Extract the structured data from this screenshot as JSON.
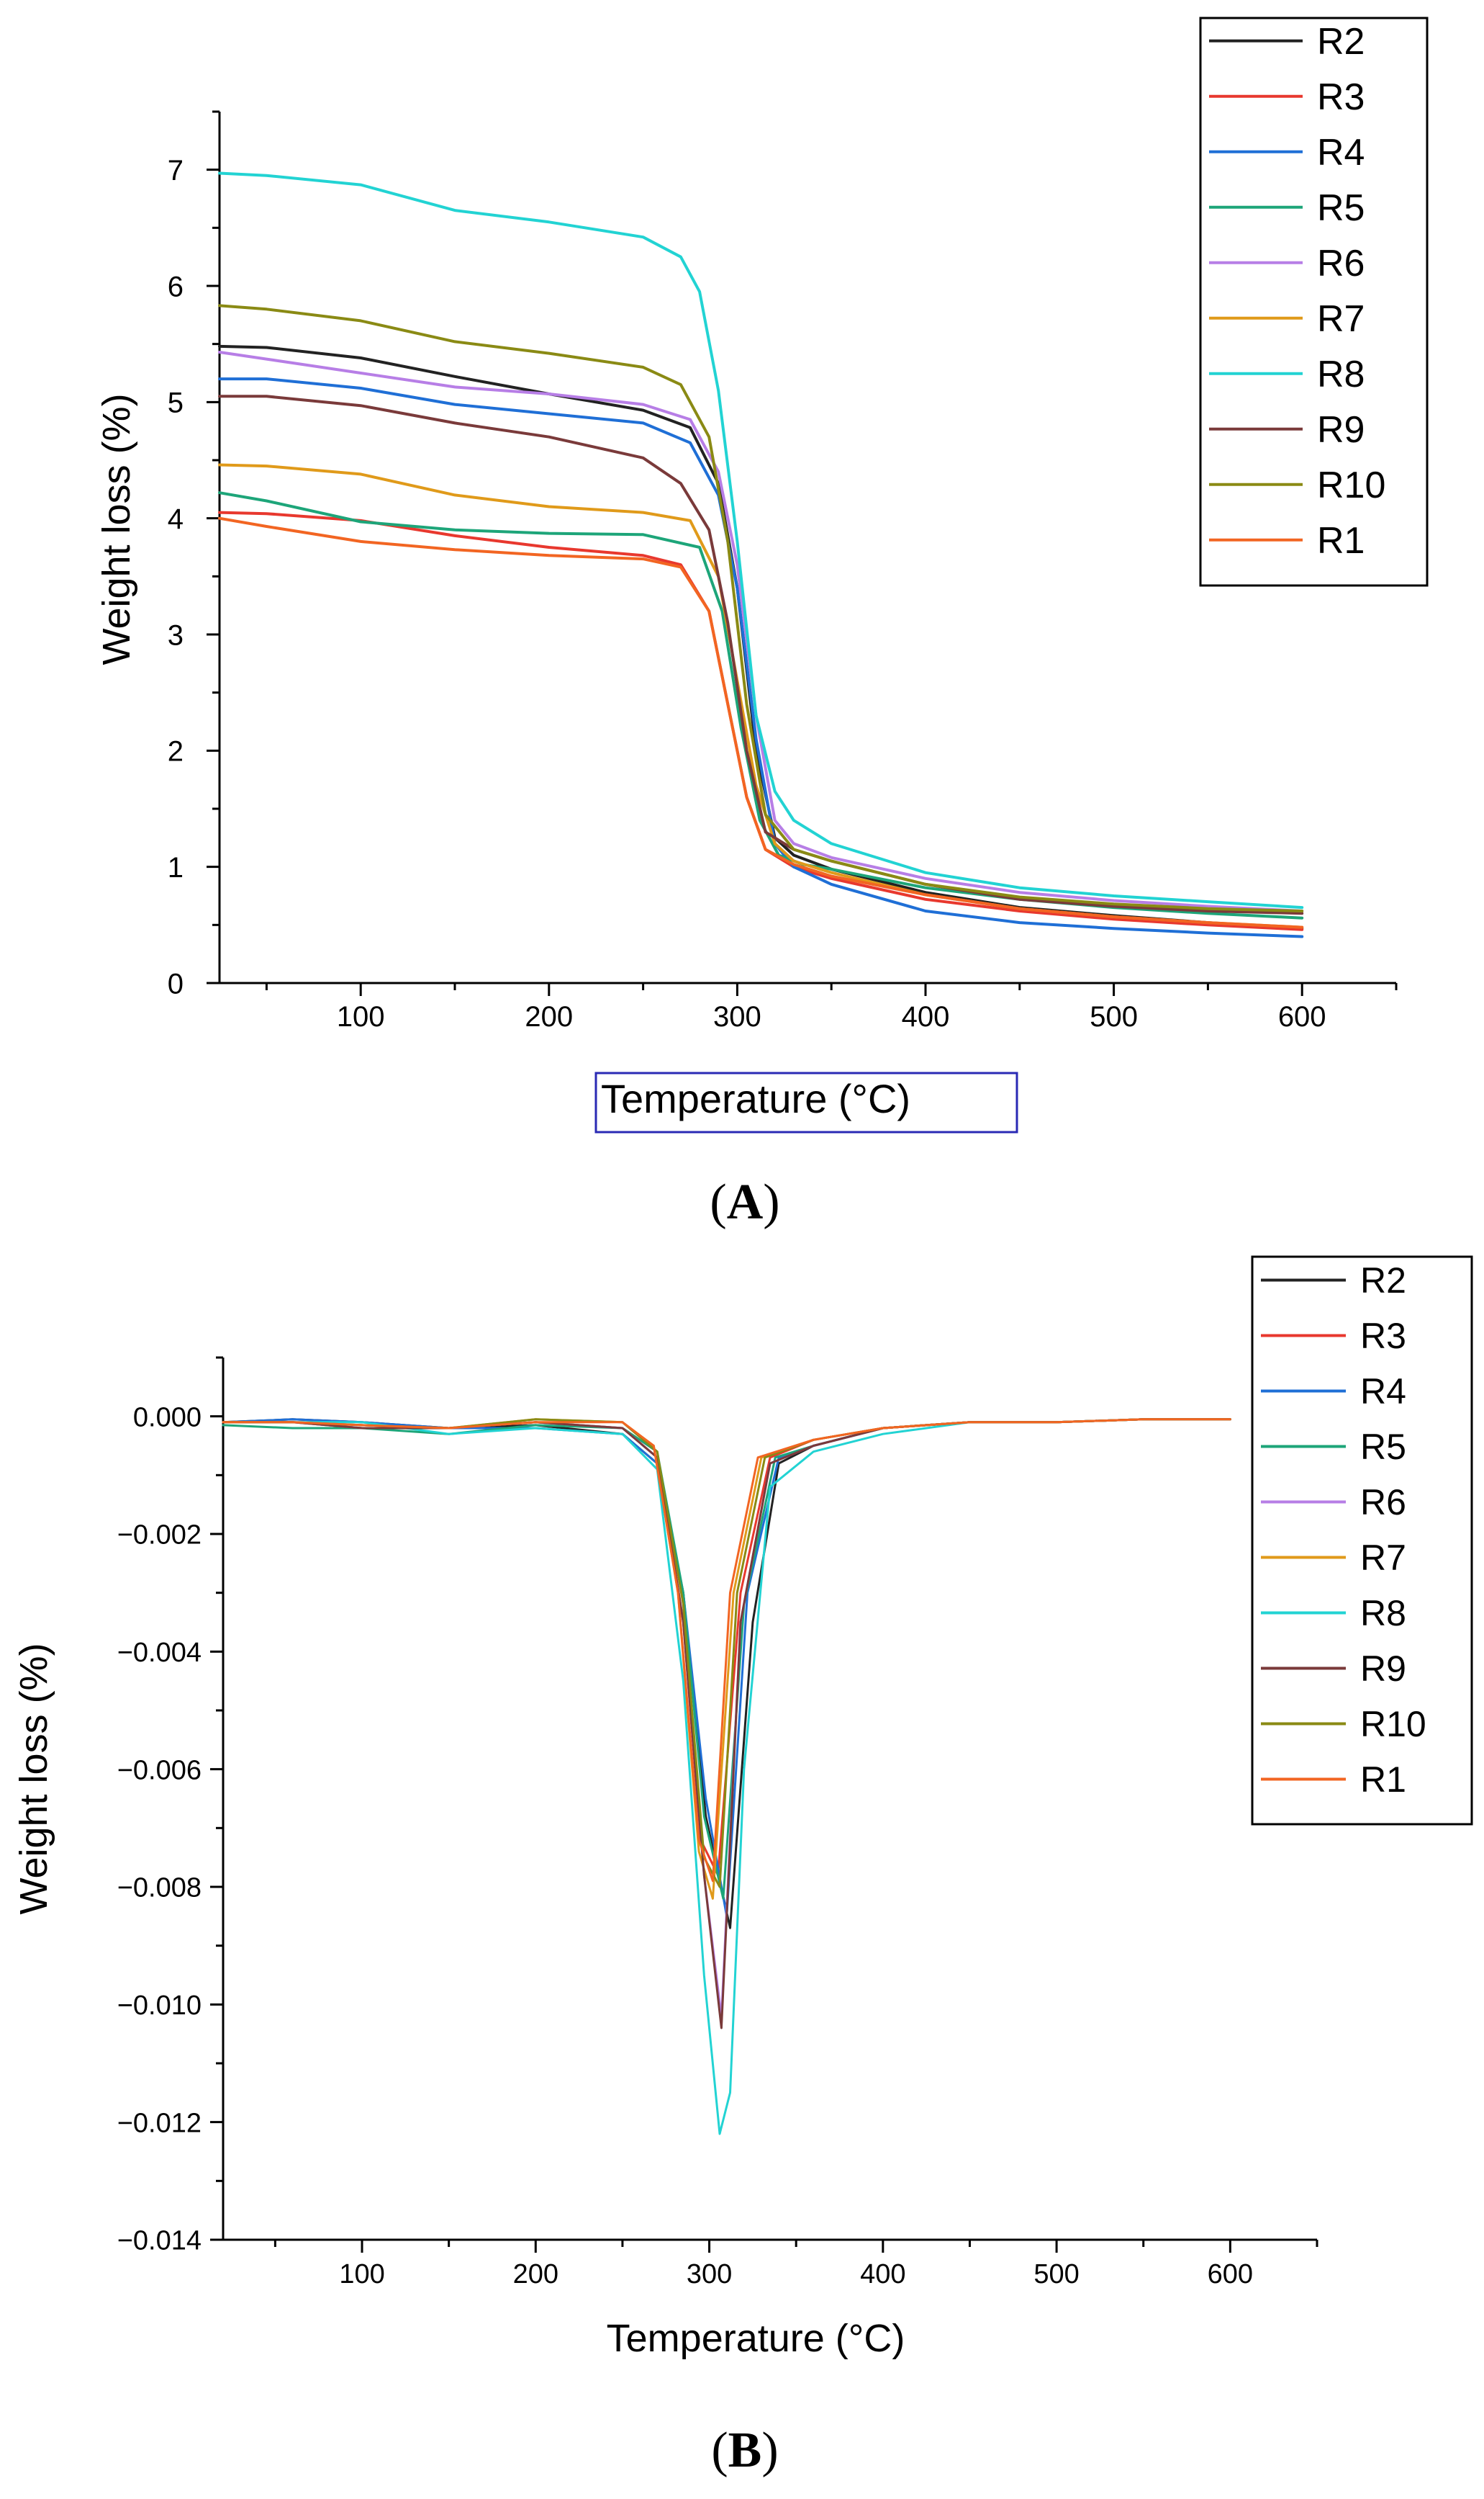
{
  "chart_data": [
    {
      "type": "line",
      "panel": "A",
      "panel_label": "A",
      "xlabel": "Temperature (°C)",
      "ylabel": "Weight loss (%)",
      "xlim": [
        25,
        650
      ],
      "ylim": [
        0,
        7.5
      ],
      "xticks": [
        100,
        200,
        300,
        400,
        500,
        600
      ],
      "yticks": [
        0,
        1,
        2,
        3,
        4,
        5,
        6,
        7
      ],
      "legend": "top-right",
      "grid": false,
      "series": [
        {
          "name": "R2",
          "color": "#222222",
          "x": [
            25,
            50,
            100,
            150,
            200,
            250,
            275,
            290,
            300,
            310,
            320,
            330,
            350,
            400,
            450,
            500,
            550,
            600
          ],
          "y": [
            5.48,
            5.47,
            5.38,
            5.22,
            5.07,
            4.93,
            4.78,
            4.3,
            3.4,
            2.0,
            1.25,
            1.1,
            0.98,
            0.78,
            0.65,
            0.58,
            0.52,
            0.47
          ]
        },
        {
          "name": "R3",
          "color": "#e8382e",
          "x": [
            25,
            50,
            100,
            150,
            200,
            250,
            270,
            285,
            295,
            305,
            315,
            330,
            350,
            400,
            450,
            500,
            550,
            600
          ],
          "y": [
            4.05,
            4.04,
            3.98,
            3.85,
            3.75,
            3.68,
            3.6,
            3.2,
            2.4,
            1.6,
            1.15,
            1.0,
            0.9,
            0.72,
            0.62,
            0.55,
            0.5,
            0.46
          ]
        },
        {
          "name": "R4",
          "color": "#1f6fd6",
          "x": [
            25,
            50,
            100,
            150,
            200,
            250,
            275,
            290,
            300,
            310,
            320,
            330,
            350,
            400,
            450,
            500,
            550,
            600
          ],
          "y": [
            5.2,
            5.2,
            5.12,
            4.98,
            4.9,
            4.82,
            4.65,
            4.2,
            3.4,
            2.1,
            1.2,
            1.0,
            0.85,
            0.62,
            0.52,
            0.47,
            0.43,
            0.4
          ]
        },
        {
          "name": "R5",
          "color": "#1da579",
          "x": [
            25,
            50,
            100,
            150,
            200,
            250,
            280,
            292,
            302,
            312,
            322,
            335,
            350,
            400,
            450,
            500,
            550,
            600
          ],
          "y": [
            4.22,
            4.15,
            3.97,
            3.9,
            3.87,
            3.86,
            3.75,
            3.2,
            2.2,
            1.4,
            1.1,
            1.02,
            0.98,
            0.82,
            0.72,
            0.65,
            0.6,
            0.56
          ]
        },
        {
          "name": "R6",
          "color": "#b77ee6",
          "x": [
            25,
            50,
            100,
            150,
            200,
            250,
            275,
            290,
            300,
            310,
            320,
            330,
            350,
            400,
            450,
            500,
            550,
            600
          ],
          "y": [
            5.43,
            5.37,
            5.25,
            5.13,
            5.07,
            4.98,
            4.85,
            4.4,
            3.6,
            2.3,
            1.4,
            1.2,
            1.08,
            0.9,
            0.78,
            0.71,
            0.66,
            0.62
          ]
        },
        {
          "name": "R7",
          "color": "#e09a1a",
          "x": [
            25,
            50,
            100,
            150,
            200,
            250,
            275,
            290,
            300,
            310,
            320,
            330,
            350,
            400,
            450,
            500,
            550,
            600
          ],
          "y": [
            4.46,
            4.45,
            4.38,
            4.2,
            4.1,
            4.05,
            3.98,
            3.5,
            2.6,
            1.7,
            1.2,
            1.05,
            0.95,
            0.76,
            0.64,
            0.57,
            0.52,
            0.48
          ]
        },
        {
          "name": "R8",
          "color": "#22d3d3",
          "x": [
            25,
            50,
            100,
            150,
            200,
            250,
            270,
            280,
            290,
            300,
            310,
            320,
            330,
            350,
            400,
            450,
            500,
            550,
            600
          ],
          "y": [
            6.97,
            6.95,
            6.87,
            6.65,
            6.55,
            6.42,
            6.25,
            5.95,
            5.1,
            3.8,
            2.3,
            1.65,
            1.4,
            1.2,
            0.95,
            0.82,
            0.75,
            0.7,
            0.65
          ]
        },
        {
          "name": "R9",
          "color": "#7a3a3a",
          "x": [
            25,
            50,
            100,
            150,
            200,
            250,
            270,
            285,
            295,
            305,
            315,
            330,
            350,
            400,
            450,
            500,
            550,
            600
          ],
          "y": [
            5.05,
            5.05,
            4.97,
            4.82,
            4.7,
            4.52,
            4.3,
            3.9,
            3.1,
            2.0,
            1.3,
            1.15,
            1.05,
            0.85,
            0.72,
            0.66,
            0.62,
            0.6
          ]
        },
        {
          "name": "R10",
          "color": "#8a8a14",
          "x": [
            25,
            50,
            100,
            150,
            200,
            250,
            270,
            285,
            295,
            305,
            315,
            330,
            350,
            400,
            450,
            500,
            550,
            600
          ],
          "y": [
            5.83,
            5.8,
            5.7,
            5.52,
            5.42,
            5.3,
            5.15,
            4.7,
            3.8,
            2.4,
            1.45,
            1.15,
            1.05,
            0.85,
            0.74,
            0.68,
            0.64,
            0.62
          ]
        },
        {
          "name": "R1",
          "color": "#f26522",
          "x": [
            25,
            50,
            100,
            150,
            200,
            250,
            270,
            285,
            295,
            305,
            315,
            330,
            350,
            400,
            450,
            500,
            550,
            600
          ],
          "y": [
            4.0,
            3.93,
            3.8,
            3.73,
            3.68,
            3.65,
            3.58,
            3.2,
            2.4,
            1.6,
            1.15,
            1.02,
            0.92,
            0.76,
            0.64,
            0.57,
            0.52,
            0.48
          ]
        }
      ]
    },
    {
      "type": "line",
      "panel": "B",
      "panel_label": "B",
      "xlabel": "Temperature (°C)",
      "ylabel": "Weight loss (%)",
      "xlim": [
        20,
        650
      ],
      "ylim": [
        -0.014,
        0.001
      ],
      "xticks": [
        100,
        200,
        300,
        400,
        500,
        600
      ],
      "yticks": [
        0.0,
        -0.002,
        -0.004,
        -0.006,
        -0.008,
        -0.01,
        -0.012,
        -0.014
      ],
      "yticklabels": [
        "0.000",
        "−0.002",
        "−0.004",
        "−0.006",
        "−0.008",
        "−0.010",
        "−0.012",
        "−0.014"
      ],
      "legend": "top-right",
      "grid": false,
      "series": [
        {
          "name": "R2",
          "color": "#222222",
          "x": [
            20,
            60,
            100,
            150,
            200,
            250,
            270,
            285,
            298,
            312,
            325,
            340,
            360,
            400,
            450,
            500,
            550,
            600
          ],
          "y": [
            -0.0001,
            -5e-05,
            -0.0001,
            -0.0002,
            -0.00015,
            -0.0003,
            -0.0008,
            -0.003,
            -0.0068,
            -0.0087,
            -0.0035,
            -0.0008,
            -0.0005,
            -0.0002,
            -0.0001,
            -0.0001,
            -5e-05,
            -5e-05
          ]
        },
        {
          "name": "R3",
          "color": "#e8382e",
          "x": [
            20,
            60,
            100,
            150,
            200,
            250,
            270,
            285,
            295,
            305,
            318,
            335,
            360,
            400,
            450,
            500,
            550,
            600
          ],
          "y": [
            -0.0001,
            -0.0001,
            -0.0002,
            -0.0002,
            -0.0001,
            -0.0002,
            -0.0006,
            -0.0035,
            -0.0072,
            -0.0078,
            -0.003,
            -0.0007,
            -0.0004,
            -0.0002,
            -0.0001,
            -0.0001,
            -5e-05,
            -5e-05
          ]
        },
        {
          "name": "R4",
          "color": "#1f6fd6",
          "x": [
            20,
            60,
            100,
            150,
            200,
            250,
            270,
            285,
            298,
            310,
            322,
            340,
            360,
            400,
            450,
            500,
            550,
            600
          ],
          "y": [
            -0.0001,
            -5e-05,
            -0.0001,
            -0.0002,
            -0.0002,
            -0.0003,
            -0.0008,
            -0.003,
            -0.0065,
            -0.0085,
            -0.003,
            -0.0007,
            -0.0005,
            -0.0002,
            -0.0001,
            -0.0001,
            -5e-05,
            -5e-05
          ]
        },
        {
          "name": "R5",
          "color": "#1da579",
          "x": [
            20,
            60,
            100,
            150,
            200,
            250,
            270,
            285,
            297,
            308,
            320,
            338,
            360,
            400,
            450,
            500,
            550,
            600
          ],
          "y": [
            -0.00015,
            -0.0002,
            -0.0002,
            -0.0003,
            -0.00015,
            -0.0002,
            -0.0006,
            -0.003,
            -0.0068,
            -0.0082,
            -0.0032,
            -0.0007,
            -0.0005,
            -0.0002,
            -0.0001,
            -0.0001,
            -5e-05,
            -5e-05
          ]
        },
        {
          "name": "R6",
          "color": "#b77ee6",
          "x": [
            20,
            60,
            100,
            150,
            200,
            250,
            270,
            285,
            297,
            307,
            318,
            335,
            360,
            400,
            450,
            500,
            550,
            600
          ],
          "y": [
            -0.0001,
            -0.0001,
            -0.0002,
            -0.0002,
            -0.0001,
            -0.0002,
            -0.0007,
            -0.0035,
            -0.0078,
            -0.0102,
            -0.0035,
            -0.0008,
            -0.0005,
            -0.0002,
            -0.0001,
            -0.0001,
            -5e-05,
            -5e-05
          ]
        },
        {
          "name": "R7",
          "color": "#e09a1a",
          "x": [
            20,
            60,
            100,
            150,
            200,
            250,
            268,
            282,
            294,
            302,
            314,
            330,
            360,
            400,
            450,
            500,
            550,
            600
          ],
          "y": [
            -0.0001,
            -0.0001,
            -0.00015,
            -0.0002,
            -5e-05,
            -0.0001,
            -0.0005,
            -0.003,
            -0.0074,
            -0.0082,
            -0.003,
            -0.0007,
            -0.0004,
            -0.0002,
            -0.0001,
            -0.0001,
            -5e-05,
            -5e-05
          ]
        },
        {
          "name": "R8",
          "color": "#22d3d3",
          "x": [
            20,
            60,
            100,
            150,
            200,
            250,
            270,
            285,
            297,
            306,
            312,
            320,
            335,
            360,
            400,
            450,
            500,
            550,
            600
          ],
          "y": [
            -0.0001,
            -0.0001,
            -0.0001,
            -0.0003,
            -0.0002,
            -0.0003,
            -0.0009,
            -0.0045,
            -0.0095,
            -0.0122,
            -0.0115,
            -0.006,
            -0.0012,
            -0.0006,
            -0.0003,
            -0.0001,
            -0.0001,
            -5e-05,
            -5e-05
          ]
        },
        {
          "name": "R9",
          "color": "#7a3a3a",
          "x": [
            20,
            60,
            100,
            150,
            200,
            250,
            270,
            285,
            297,
            307,
            318,
            335,
            360,
            400,
            450,
            500,
            550,
            600
          ],
          "y": [
            -0.0001,
            -0.0001,
            -0.0002,
            -0.0002,
            -0.0001,
            -0.0002,
            -0.0007,
            -0.0035,
            -0.0078,
            -0.0104,
            -0.0035,
            -0.0008,
            -0.0005,
            -0.0002,
            -0.0001,
            -0.0001,
            -5e-05,
            -5e-05
          ]
        },
        {
          "name": "R10",
          "color": "#8a8a14",
          "x": [
            20,
            60,
            100,
            150,
            200,
            250,
            270,
            285,
            297,
            306,
            316,
            332,
            360,
            400,
            450,
            500,
            550,
            600
          ],
          "y": [
            -0.0001,
            -0.0001,
            -0.00015,
            -0.0002,
            -5e-05,
            -0.0001,
            -0.0006,
            -0.0032,
            -0.0075,
            -0.008,
            -0.003,
            -0.0007,
            -0.0004,
            -0.0002,
            -0.0001,
            -0.0001,
            -5e-05,
            -5e-05
          ]
        },
        {
          "name": "R1",
          "color": "#f26522",
          "x": [
            20,
            60,
            100,
            150,
            200,
            250,
            268,
            282,
            294,
            302,
            312,
            328,
            360,
            400,
            450,
            500,
            550,
            600
          ],
          "y": [
            -0.0001,
            -0.0001,
            -0.00015,
            -0.0002,
            -0.0001,
            -0.0001,
            -0.0005,
            -0.003,
            -0.0072,
            -0.0079,
            -0.003,
            -0.0007,
            -0.0004,
            -0.0002,
            -0.0001,
            -0.0001,
            -5e-05,
            -5e-05
          ]
        }
      ]
    }
  ]
}
